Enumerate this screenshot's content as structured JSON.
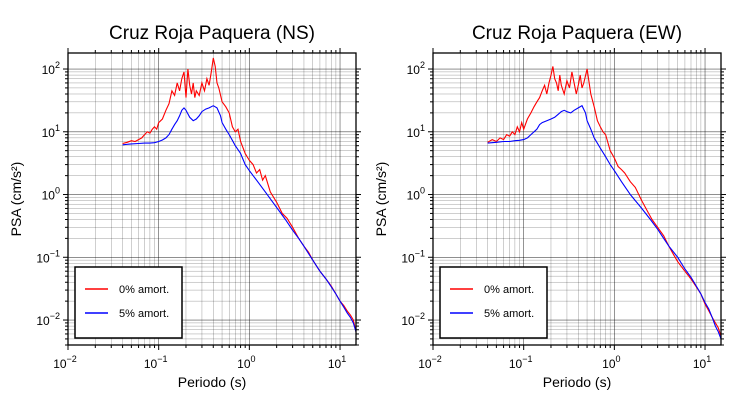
{
  "chart_data": [
    {
      "type": "line",
      "title": "Cruz Roja Paquera (NS)",
      "xlabel": "Periodo (s)",
      "ylabel": "PSA (cm/s²)",
      "xscale": "log",
      "yscale": "log",
      "xlim": [
        0.01,
        15
      ],
      "ylim": [
        0.004,
        180
      ],
      "grid": true,
      "legend": "bottom-left",
      "xticks": [
        {
          "base": "10",
          "exp": "−2",
          "value": 0.01
        },
        {
          "base": "10",
          "exp": "−1",
          "value": 0.1
        },
        {
          "base": "10",
          "exp": "0",
          "value": 1
        },
        {
          "base": "10",
          "exp": "1",
          "value": 10
        }
      ],
      "yticks": [
        {
          "base": "10",
          "exp": "−2",
          "value": 0.01
        },
        {
          "base": "10",
          "exp": "−1",
          "value": 0.1
        },
        {
          "base": "10",
          "exp": "0",
          "value": 1
        },
        {
          "base": "10",
          "exp": "1",
          "value": 10
        },
        {
          "base": "10",
          "exp": "2",
          "value": 100
        }
      ],
      "series": [
        {
          "name": "0% amort.",
          "color": "#ff0000",
          "x": [
            0.04,
            0.045,
            0.05,
            0.055,
            0.06,
            0.065,
            0.07,
            0.075,
            0.08,
            0.085,
            0.09,
            0.095,
            0.1,
            0.11,
            0.12,
            0.13,
            0.14,
            0.15,
            0.16,
            0.17,
            0.18,
            0.19,
            0.2,
            0.21,
            0.22,
            0.23,
            0.24,
            0.25,
            0.26,
            0.28,
            0.3,
            0.32,
            0.34,
            0.36,
            0.38,
            0.4,
            0.42,
            0.44,
            0.46,
            0.5,
            0.55,
            0.6,
            0.65,
            0.7,
            0.75,
            0.8,
            0.9,
            1.0,
            1.1,
            1.2,
            1.3,
            1.4,
            1.5,
            1.7,
            2.0,
            2.3,
            2.6,
            3.0,
            3.5,
            4.0,
            4.5,
            5.0,
            6.0,
            7.0,
            8.0,
            9.0,
            10.0,
            11.0,
            12.0,
            13.0,
            14.0,
            15.0
          ],
          "y": [
            6.5,
            6.8,
            7.2,
            7,
            7.5,
            8,
            9,
            10,
            9.5,
            11,
            12,
            11,
            14,
            16,
            22,
            28,
            45,
            38,
            60,
            45,
            70,
            90,
            35,
            100,
            55,
            40,
            60,
            35,
            45,
            38,
            60,
            45,
            70,
            55,
            90,
            150,
            110,
            60,
            50,
            30,
            25,
            20,
            12,
            10,
            11,
            7,
            4.5,
            3.5,
            3,
            2.2,
            2.5,
            1.7,
            2,
            1.1,
            0.75,
            0.5,
            0.42,
            0.3,
            0.2,
            0.15,
            0.12,
            0.09,
            0.06,
            0.045,
            0.035,
            0.026,
            0.02,
            0.017,
            0.014,
            0.012,
            0.01,
            0.0065
          ]
        },
        {
          "name": "5% amort.",
          "color": "#0000ff",
          "x": [
            0.04,
            0.05,
            0.06,
            0.07,
            0.08,
            0.09,
            0.1,
            0.11,
            0.12,
            0.13,
            0.14,
            0.15,
            0.16,
            0.17,
            0.18,
            0.19,
            0.2,
            0.22,
            0.24,
            0.26,
            0.28,
            0.3,
            0.33,
            0.36,
            0.4,
            0.44,
            0.48,
            0.5,
            0.55,
            0.6,
            0.7,
            0.8,
            0.9,
            1.0,
            1.2,
            1.5,
            2.0,
            2.5,
            3.0,
            3.5,
            4.0,
            5.0,
            6.0,
            7.0,
            8.0,
            9.0,
            10.0,
            11.0,
            12.0,
            13.0,
            14.0,
            15.0
          ],
          "y": [
            6.2,
            6.4,
            6.5,
            6.6,
            6.6,
            6.7,
            7,
            7.4,
            8,
            9,
            11,
            13,
            15,
            18,
            22,
            24,
            22,
            17,
            15,
            16,
            18,
            21,
            23,
            24,
            26,
            24,
            18,
            14,
            11,
            9,
            6,
            4.5,
            3,
            2.4,
            1.7,
            1.1,
            0.62,
            0.4,
            0.27,
            0.2,
            0.15,
            0.09,
            0.06,
            0.045,
            0.034,
            0.026,
            0.02,
            0.016,
            0.013,
            0.011,
            0.009,
            0.0065
          ]
        }
      ]
    },
    {
      "type": "line",
      "title": "Cruz Roja Paquera (EW)",
      "xlabel": "Periodo (s)",
      "ylabel": "PSA (cm/s²)",
      "xscale": "log",
      "yscale": "log",
      "xlim": [
        0.01,
        15
      ],
      "ylim": [
        0.004,
        180
      ],
      "grid": true,
      "legend": "bottom-left",
      "xticks": [
        {
          "base": "10",
          "exp": "−2",
          "value": 0.01
        },
        {
          "base": "10",
          "exp": "−1",
          "value": 0.1
        },
        {
          "base": "10",
          "exp": "0",
          "value": 1
        },
        {
          "base": "10",
          "exp": "1",
          "value": 10
        }
      ],
      "yticks": [
        {
          "base": "10",
          "exp": "−2",
          "value": 0.01
        },
        {
          "base": "10",
          "exp": "−1",
          "value": 0.1
        },
        {
          "base": "10",
          "exp": "0",
          "value": 1
        },
        {
          "base": "10",
          "exp": "1",
          "value": 10
        },
        {
          "base": "10",
          "exp": "2",
          "value": 100
        }
      ],
      "series": [
        {
          "name": "0% amort.",
          "color": "#ff0000",
          "x": [
            0.04,
            0.045,
            0.05,
            0.055,
            0.06,
            0.065,
            0.07,
            0.075,
            0.08,
            0.085,
            0.09,
            0.095,
            0.1,
            0.11,
            0.12,
            0.13,
            0.14,
            0.15,
            0.16,
            0.17,
            0.18,
            0.19,
            0.2,
            0.21,
            0.22,
            0.23,
            0.24,
            0.25,
            0.26,
            0.28,
            0.3,
            0.32,
            0.34,
            0.36,
            0.38,
            0.4,
            0.42,
            0.44,
            0.46,
            0.5,
            0.55,
            0.6,
            0.65,
            0.7,
            0.75,
            0.8,
            0.9,
            1.0,
            1.1,
            1.2,
            1.3,
            1.5,
            1.7,
            2.0,
            2.3,
            2.6,
            3.0,
            3.5,
            4.0,
            4.5,
            5.0,
            6.0,
            7.0,
            8.0,
            9.0,
            10.0,
            11.0,
            12.0,
            13.0,
            14.0,
            15.0
          ],
          "y": [
            6.8,
            7.5,
            7,
            8,
            7.5,
            9,
            8.5,
            10,
            9,
            12,
            10,
            14,
            11,
            16,
            20,
            25,
            30,
            35,
            45,
            55,
            40,
            60,
            80,
            110,
            70,
            60,
            45,
            80,
            55,
            40,
            65,
            50,
            90,
            60,
            40,
            55,
            80,
            50,
            60,
            100,
            40,
            25,
            15,
            12,
            10,
            9,
            5,
            3.8,
            2.8,
            2.5,
            2.2,
            1.6,
            1.3,
            0.8,
            0.55,
            0.4,
            0.3,
            0.22,
            0.15,
            0.11,
            0.085,
            0.06,
            0.045,
            0.034,
            0.026,
            0.018,
            0.014,
            0.011,
            0.009,
            0.0075,
            0.0055
          ]
        },
        {
          "name": "5% amort.",
          "color": "#0000ff",
          "x": [
            0.04,
            0.05,
            0.06,
            0.07,
            0.08,
            0.09,
            0.1,
            0.11,
            0.12,
            0.13,
            0.14,
            0.15,
            0.16,
            0.18,
            0.2,
            0.22,
            0.24,
            0.26,
            0.28,
            0.3,
            0.33,
            0.36,
            0.4,
            0.44,
            0.48,
            0.5,
            0.55,
            0.6,
            0.7,
            0.8,
            0.9,
            1.0,
            1.2,
            1.5,
            2.0,
            2.5,
            3.0,
            3.5,
            4.0,
            5.0,
            6.0,
            7.0,
            8.0,
            9.0,
            10.0,
            11.0,
            12.0,
            13.0,
            14.0,
            15.0
          ],
          "y": [
            6.6,
            6.8,
            7,
            7,
            7.2,
            7.3,
            7.5,
            8,
            9,
            10,
            11,
            13,
            14,
            15,
            16,
            17,
            19,
            21,
            22,
            21,
            20,
            22,
            24,
            26,
            20,
            15,
            11,
            8,
            5.5,
            4,
            3,
            2.4,
            1.6,
            1,
            0.6,
            0.4,
            0.28,
            0.2,
            0.15,
            0.1,
            0.065,
            0.048,
            0.035,
            0.026,
            0.019,
            0.015,
            0.011,
            0.008,
            0.0065,
            0.005
          ]
        }
      ]
    }
  ]
}
